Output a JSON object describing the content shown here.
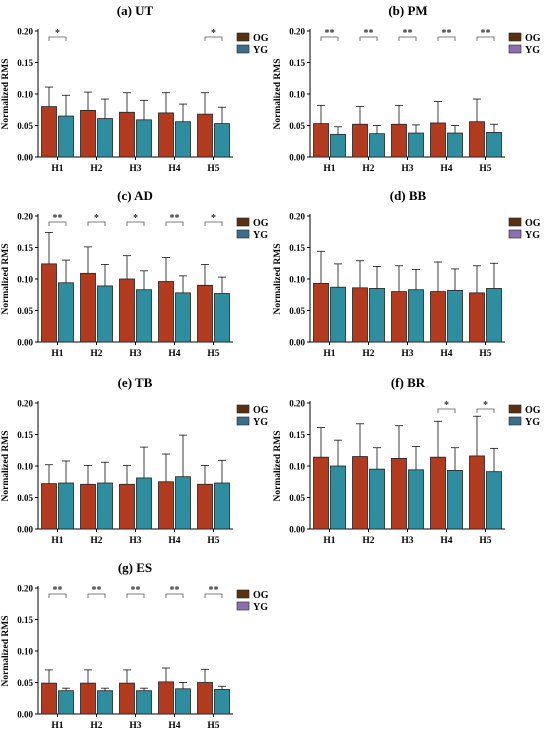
{
  "figure": {
    "colors": {
      "og": "#B23A1E",
      "yg": "#2E8EA0",
      "og_legend": "#5A3010",
      "yg_legend": "#3C6E8C",
      "pm_yg_legend": "#8E6FB0"
    }
  },
  "chart_data": [
    {
      "type": "bar",
      "title": "(a) UT",
      "ylabel": "Normalized RMS",
      "xlabel": "",
      "categories": [
        "H1",
        "H2",
        "H3",
        "H4",
        "H5"
      ],
      "ylim": [
        0,
        0.2
      ],
      "yticks": [
        "0.00",
        "0.05",
        "0.10",
        "0.15",
        "0.20"
      ],
      "series": [
        {
          "name": "OG",
          "values": [
            0.08,
            0.074,
            0.071,
            0.07,
            0.068
          ],
          "error": [
            0.031,
            0.029,
            0.031,
            0.032,
            0.034
          ]
        },
        {
          "name": "YG",
          "values": [
            0.065,
            0.061,
            0.059,
            0.056,
            0.053
          ],
          "error": [
            0.033,
            0.031,
            0.031,
            0.028,
            0.026
          ]
        }
      ],
      "significance": [
        "*",
        "",
        "",
        "",
        "*"
      ]
    },
    {
      "type": "bar",
      "title": "(b) PM",
      "ylabel": "Normalized RMS",
      "xlabel": "",
      "categories": [
        "H1",
        "H2",
        "H3",
        "H4",
        "H5"
      ],
      "ylim": [
        0,
        0.2
      ],
      "yticks": [
        "0.00",
        "0.05",
        "0.10",
        "0.15",
        "0.20"
      ],
      "series": [
        {
          "name": "OG",
          "values": [
            0.053,
            0.052,
            0.052,
            0.054,
            0.056
          ],
          "error": [
            0.029,
            0.028,
            0.03,
            0.034,
            0.036
          ]
        },
        {
          "name": "YG",
          "values": [
            0.036,
            0.037,
            0.038,
            0.038,
            0.039
          ],
          "error": [
            0.012,
            0.013,
            0.013,
            0.012,
            0.013
          ]
        }
      ],
      "significance": [
        "**",
        "**",
        "**",
        "**",
        "**"
      ]
    },
    {
      "type": "bar",
      "title": "(c) AD",
      "ylabel": "Normalized RMS",
      "xlabel": "",
      "categories": [
        "H1",
        "H2",
        "H3",
        "H4",
        "H5"
      ],
      "ylim": [
        0,
        0.2
      ],
      "yticks": [
        "0.00",
        "0.05",
        "0.10",
        "0.15",
        "0.20"
      ],
      "series": [
        {
          "name": "OG",
          "values": [
            0.124,
            0.109,
            0.1,
            0.096,
            0.09
          ],
          "error": [
            0.05,
            0.042,
            0.037,
            0.038,
            0.033
          ]
        },
        {
          "name": "YG",
          "values": [
            0.094,
            0.089,
            0.083,
            0.078,
            0.077
          ],
          "error": [
            0.036,
            0.034,
            0.03,
            0.027,
            0.026
          ]
        }
      ],
      "significance": [
        "**",
        "*",
        "*",
        "**",
        "*"
      ]
    },
    {
      "type": "bar",
      "title": "(d) BB",
      "ylabel": "Normalized RMS",
      "xlabel": "",
      "categories": [
        "H1",
        "H2",
        "H3",
        "H4",
        "H5"
      ],
      "ylim": [
        0,
        0.2
      ],
      "yticks": [
        "0.00",
        "0.05",
        "0.10",
        "0.15",
        "0.20"
      ],
      "series": [
        {
          "name": "OG",
          "values": [
            0.093,
            0.086,
            0.08,
            0.08,
            0.078
          ],
          "error": [
            0.051,
            0.043,
            0.041,
            0.047,
            0.043
          ]
        },
        {
          "name": "YG",
          "values": [
            0.087,
            0.085,
            0.083,
            0.082,
            0.085
          ],
          "error": [
            0.037,
            0.035,
            0.032,
            0.034,
            0.04
          ]
        }
      ],
      "significance": [
        "",
        "",
        "",
        "",
        ""
      ]
    },
    {
      "type": "bar",
      "title": "(e) TB",
      "ylabel": "Normalized RMS",
      "xlabel": "",
      "categories": [
        "H1",
        "H2",
        "H3",
        "H4",
        "H5"
      ],
      "ylim": [
        0,
        0.2
      ],
      "yticks": [
        "0.00",
        "0.05",
        "0.10",
        "0.15",
        "0.20"
      ],
      "series": [
        {
          "name": "OG",
          "values": [
            0.072,
            0.071,
            0.071,
            0.075,
            0.071
          ],
          "error": [
            0.03,
            0.03,
            0.03,
            0.044,
            0.03
          ]
        },
        {
          "name": "YG",
          "values": [
            0.073,
            0.073,
            0.081,
            0.083,
            0.073
          ],
          "error": [
            0.035,
            0.033,
            0.049,
            0.066,
            0.036
          ]
        }
      ],
      "significance": [
        "",
        "",
        "",
        "",
        ""
      ]
    },
    {
      "type": "bar",
      "title": "(f) BR",
      "ylabel": "Normalized RMS",
      "xlabel": "",
      "categories": [
        "H1",
        "H2",
        "H3",
        "H4",
        "H5"
      ],
      "ylim": [
        0,
        0.2
      ],
      "yticks": [
        "0.00",
        "0.05",
        "0.10",
        "0.15",
        "0.20"
      ],
      "series": [
        {
          "name": "OG",
          "values": [
            0.114,
            0.115,
            0.112,
            0.114,
            0.116
          ],
          "error": [
            0.047,
            0.052,
            0.052,
            0.057,
            0.063
          ]
        },
        {
          "name": "YG",
          "values": [
            0.1,
            0.095,
            0.094,
            0.093,
            0.091
          ],
          "error": [
            0.041,
            0.034,
            0.037,
            0.036,
            0.037
          ]
        }
      ],
      "significance": [
        "",
        "",
        "",
        "*",
        "*"
      ]
    },
    {
      "type": "bar",
      "title": "(g) ES",
      "ylabel": "Normalized RMS",
      "xlabel": "",
      "categories": [
        "H1",
        "H2",
        "H3",
        "H4",
        "H5"
      ],
      "ylim": [
        0,
        0.2
      ],
      "yticks": [
        "0.00",
        "0.05",
        "0.10",
        "0.15",
        "0.20"
      ],
      "series": [
        {
          "name": "OG",
          "values": [
            0.049,
            0.049,
            0.049,
            0.051,
            0.05
          ],
          "error": [
            0.021,
            0.021,
            0.021,
            0.022,
            0.021
          ]
        },
        {
          "name": "YG",
          "values": [
            0.037,
            0.037,
            0.037,
            0.04,
            0.039
          ],
          "error": [
            0.004,
            0.004,
            0.004,
            0.01,
            0.005
          ]
        }
      ],
      "significance": [
        "**",
        "**",
        "**",
        "**",
        "**"
      ]
    }
  ]
}
